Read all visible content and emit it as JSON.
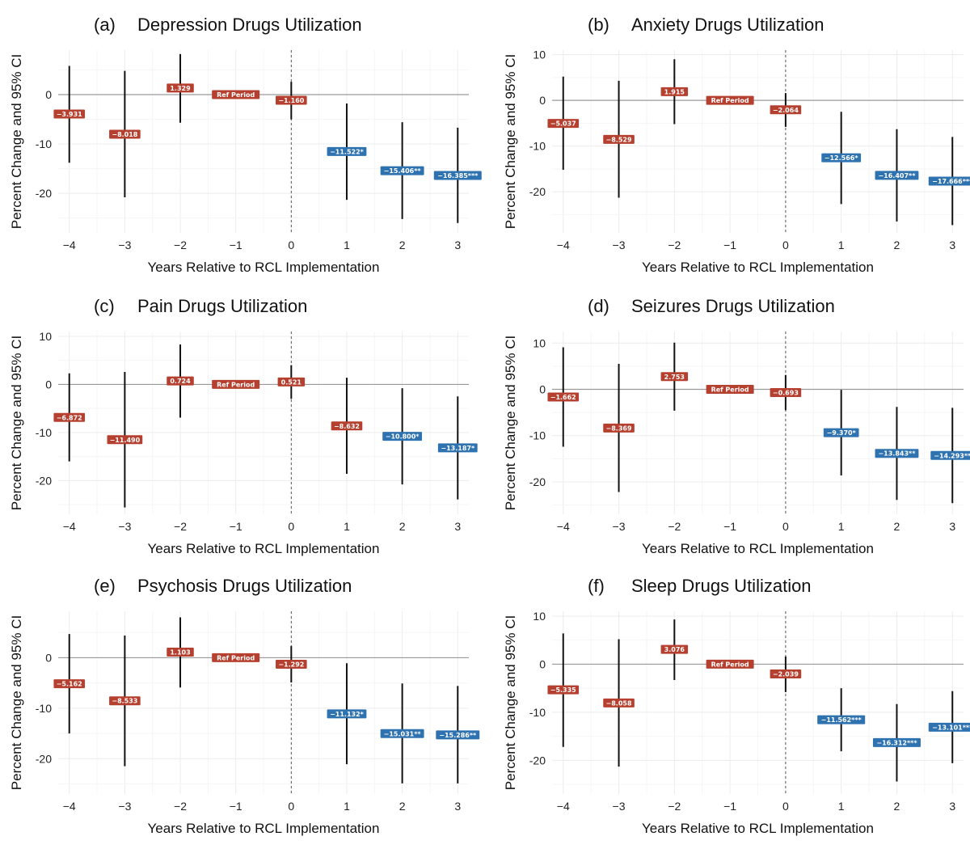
{
  "chart_data": [
    {
      "type": "errorbar",
      "panel": "(a)",
      "title": "Depression Drugs Utilization",
      "xlabel": "Years Relative to RCL Implementation",
      "ylabel": "Percent Change and 95% CI",
      "xlim": [
        -4.2,
        3.2
      ],
      "ylim": [
        -28,
        9
      ],
      "yticks": [
        0,
        -10,
        -20
      ],
      "xticks": [
        -4,
        -3,
        -2,
        -1,
        0,
        1,
        2,
        3
      ],
      "points": [
        {
          "x": -4,
          "y": -3.931,
          "lo": -13.8,
          "hi": 5.8,
          "label": "−3.931",
          "color": "#b5402f"
        },
        {
          "x": -3,
          "y": -8.018,
          "lo": -20.8,
          "hi": 4.8,
          "label": "−8.018",
          "color": "#b5402f"
        },
        {
          "x": -2,
          "y": 1.329,
          "lo": -5.7,
          "hi": 8.2,
          "label": "1.329",
          "color": "#b5402f"
        },
        {
          "x": -1,
          "y": 0,
          "label": "Ref Period",
          "color": "#b5402f"
        },
        {
          "x": 0,
          "y": -1.16,
          "lo": -5.0,
          "hi": 2.6,
          "label": "−1.160",
          "color": "#b5402f"
        },
        {
          "x": 1,
          "y": -11.522,
          "lo": -21.3,
          "hi": -1.8,
          "label": "−11.522*",
          "color": "#2f72b0"
        },
        {
          "x": 2,
          "y": -15.406,
          "lo": -25.2,
          "hi": -5.6,
          "label": "−15.406**",
          "color": "#2f72b0"
        },
        {
          "x": 3,
          "y": -16.385,
          "lo": -26.0,
          "hi": -6.7,
          "label": "−16.385***",
          "color": "#2f72b0"
        }
      ]
    },
    {
      "type": "errorbar",
      "panel": "(b)",
      "title": "Anxiety Drugs Utilization",
      "xlabel": "Years Relative to RCL Implementation",
      "ylabel": "Percent Change and 95% CI",
      "xlim": [
        -4.2,
        3.2
      ],
      "ylim": [
        -29,
        11
      ],
      "yticks": [
        10,
        0,
        -10,
        -20
      ],
      "xticks": [
        -4,
        -3,
        -2,
        -1,
        0,
        1,
        2,
        3
      ],
      "points": [
        {
          "x": -4,
          "y": -5.037,
          "lo": -15.2,
          "hi": 5.2,
          "label": "−5.037",
          "color": "#b5402f"
        },
        {
          "x": -3,
          "y": -8.529,
          "lo": -21.3,
          "hi": 4.3,
          "label": "−8.529",
          "color": "#b5402f"
        },
        {
          "x": -2,
          "y": 1.915,
          "lo": -5.2,
          "hi": 9.0,
          "label": "1.915",
          "color": "#b5402f"
        },
        {
          "x": -1,
          "y": 0,
          "label": "Ref Period",
          "color": "#b5402f"
        },
        {
          "x": 0,
          "y": -2.064,
          "lo": -5.8,
          "hi": 1.6,
          "label": "−2.064",
          "color": "#b5402f"
        },
        {
          "x": 1,
          "y": -12.566,
          "lo": -22.7,
          "hi": -2.5,
          "label": "−12.566*",
          "color": "#2f72b0"
        },
        {
          "x": 2,
          "y": -16.407,
          "lo": -26.5,
          "hi": -6.3,
          "label": "−16.407**",
          "color": "#2f72b0"
        },
        {
          "x": 3,
          "y": -17.666,
          "lo": -27.3,
          "hi": -8.0,
          "label": "−17.666***",
          "color": "#2f72b0"
        }
      ]
    },
    {
      "type": "errorbar",
      "panel": "(c)",
      "title": "Pain Drugs Utilization",
      "xlabel": "Years Relative to RCL Implementation",
      "ylabel": "Percent Change and 95% CI",
      "xlim": [
        -4.2,
        3.2
      ],
      "ylim": [
        -27,
        11
      ],
      "yticks": [
        10,
        0,
        -10,
        -20
      ],
      "xticks": [
        -4,
        -3,
        -2,
        -1,
        0,
        1,
        2,
        3
      ],
      "points": [
        {
          "x": -4,
          "y": -6.872,
          "lo": -16.0,
          "hi": 2.3,
          "label": "−6.872",
          "color": "#b5402f"
        },
        {
          "x": -3,
          "y": -11.49,
          "lo": -25.6,
          "hi": 2.6,
          "label": "−11.490",
          "color": "#b5402f"
        },
        {
          "x": -2,
          "y": 0.724,
          "lo": -6.9,
          "hi": 8.3,
          "label": "0.724",
          "color": "#b5402f"
        },
        {
          "x": -1,
          "y": 0,
          "label": "Ref Period",
          "color": "#b5402f"
        },
        {
          "x": 0,
          "y": 0.521,
          "lo": -3.0,
          "hi": 4.0,
          "label": "0.521",
          "color": "#b5402f"
        },
        {
          "x": 1,
          "y": -8.632,
          "lo": -18.6,
          "hi": 1.4,
          "label": "−8.632",
          "color": "#b5402f"
        },
        {
          "x": 2,
          "y": -10.8,
          "lo": -20.8,
          "hi": -0.8,
          "label": "−10.800*",
          "color": "#2f72b0"
        },
        {
          "x": 3,
          "y": -13.187,
          "lo": -23.9,
          "hi": -2.5,
          "label": "−13.187*",
          "color": "#2f72b0"
        }
      ]
    },
    {
      "type": "errorbar",
      "panel": "(d)",
      "title": "Seizures Drugs Utilization",
      "xlabel": "Years Relative to RCL Implementation",
      "ylabel": "Percent Change and 95% CI",
      "xlim": [
        -4.2,
        3.2
      ],
      "ylim": [
        -27,
        12.5
      ],
      "yticks": [
        10,
        0,
        -10,
        -20
      ],
      "xticks": [
        -4,
        -3,
        -2,
        -1,
        0,
        1,
        2,
        3
      ],
      "points": [
        {
          "x": -4,
          "y": -1.662,
          "lo": -12.4,
          "hi": 9.1,
          "label": "−1.662",
          "color": "#b5402f"
        },
        {
          "x": -3,
          "y": -8.369,
          "lo": -22.2,
          "hi": 5.5,
          "label": "−8.369",
          "color": "#b5402f"
        },
        {
          "x": -2,
          "y": 2.753,
          "lo": -4.6,
          "hi": 10.1,
          "label": "2.753",
          "color": "#b5402f"
        },
        {
          "x": -1,
          "y": 0,
          "label": "Ref Period",
          "color": "#b5402f"
        },
        {
          "x": 0,
          "y": -0.693,
          "lo": -4.5,
          "hi": 3.1,
          "label": "−0.693",
          "color": "#b5402f"
        },
        {
          "x": 1,
          "y": -9.37,
          "lo": -18.6,
          "hi": -0.1,
          "label": "−9.370*",
          "color": "#2f72b0"
        },
        {
          "x": 2,
          "y": -13.843,
          "lo": -23.9,
          "hi": -3.8,
          "label": "−13.843**",
          "color": "#2f72b0"
        },
        {
          "x": 3,
          "y": -14.293,
          "lo": -24.6,
          "hi": -4.0,
          "label": "−14.293**",
          "color": "#2f72b0"
        }
      ]
    },
    {
      "type": "errorbar",
      "panel": "(e)",
      "title": "Psychosis Drugs Utilization",
      "xlabel": "Years Relative to RCL Implementation",
      "ylabel": "Percent Change and 95% CI",
      "xlim": [
        -4.2,
        3.2
      ],
      "ylim": [
        -27,
        9.2
      ],
      "yticks": [
        0,
        -10,
        -20
      ],
      "xticks": [
        -4,
        -3,
        -2,
        -1,
        0,
        1,
        2,
        3
      ],
      "points": [
        {
          "x": -4,
          "y": -5.162,
          "lo": -15.0,
          "hi": 4.7,
          "label": "−5.162",
          "color": "#b5402f"
        },
        {
          "x": -3,
          "y": -8.533,
          "lo": -21.5,
          "hi": 4.4,
          "label": "−8.533",
          "color": "#b5402f"
        },
        {
          "x": -2,
          "y": 1.103,
          "lo": -5.9,
          "hi": 8.0,
          "label": "1.103",
          "color": "#b5402f"
        },
        {
          "x": -1,
          "y": 0,
          "label": "Ref Period",
          "color": "#b5402f"
        },
        {
          "x": 0,
          "y": -1.292,
          "lo": -4.9,
          "hi": 2.3,
          "label": "−1.292",
          "color": "#b5402f"
        },
        {
          "x": 1,
          "y": -11.132,
          "lo": -21.1,
          "hi": -1.1,
          "label": "−11.132*",
          "color": "#2f72b0"
        },
        {
          "x": 2,
          "y": -15.031,
          "lo": -24.9,
          "hi": -5.1,
          "label": "−15.031**",
          "color": "#2f72b0"
        },
        {
          "x": 3,
          "y": -15.286,
          "lo": -24.9,
          "hi": -5.6,
          "label": "−15.286**",
          "color": "#2f72b0"
        }
      ]
    },
    {
      "type": "errorbar",
      "panel": "(f)",
      "title": "Sleep Drugs Utilization",
      "xlabel": "Years Relative to RCL Implementation",
      "ylabel": "Percent Change and 95% CI",
      "xlim": [
        -4.2,
        3.2
      ],
      "ylim": [
        -27,
        11
      ],
      "yticks": [
        10,
        0,
        -10,
        -20
      ],
      "xticks": [
        -4,
        -3,
        -2,
        -1,
        0,
        1,
        2,
        3
      ],
      "points": [
        {
          "x": -4,
          "y": -5.335,
          "lo": -17.2,
          "hi": 6.4,
          "label": "−5.335",
          "color": "#b5402f"
        },
        {
          "x": -3,
          "y": -8.058,
          "lo": -21.3,
          "hi": 5.2,
          "label": "−8.058",
          "color": "#b5402f"
        },
        {
          "x": -2,
          "y": 3.076,
          "lo": -3.3,
          "hi": 9.3,
          "label": "3.076",
          "color": "#b5402f"
        },
        {
          "x": -1,
          "y": 0,
          "label": "Ref Period",
          "color": "#b5402f"
        },
        {
          "x": 0,
          "y": -2.039,
          "lo": -5.8,
          "hi": 1.6,
          "label": "−2.039",
          "color": "#b5402f"
        },
        {
          "x": 1,
          "y": -11.562,
          "lo": -18.1,
          "hi": -5.0,
          "label": "−11.562***",
          "color": "#2f72b0"
        },
        {
          "x": 2,
          "y": -16.312,
          "lo": -24.4,
          "hi": -8.3,
          "label": "−16.312***",
          "color": "#2f72b0"
        },
        {
          "x": 3,
          "y": -13.101,
          "lo": -20.6,
          "hi": -5.6,
          "label": "−13.101***",
          "color": "#2f72b0"
        }
      ]
    }
  ]
}
